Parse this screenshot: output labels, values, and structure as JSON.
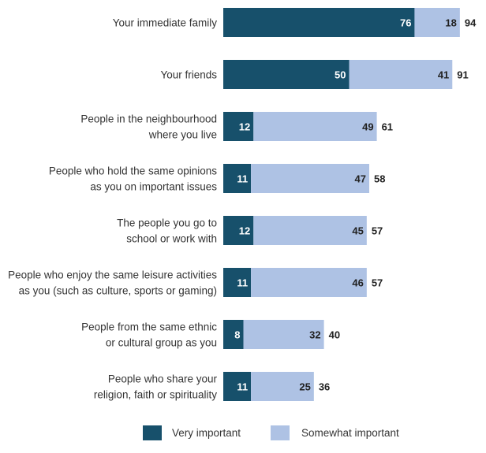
{
  "chart_data": {
    "type": "bar",
    "orientation": "horizontal",
    "stacked": true,
    "categories": [
      [
        "Your immediate family"
      ],
      [
        "Your friends"
      ],
      [
        "People in the neighbourhood",
        "where you live"
      ],
      [
        "People who hold the same opinions",
        "as you on important issues"
      ],
      [
        "The people you go to",
        "school or work with"
      ],
      [
        "People who enjoy the same leisure activities",
        "as you (such as culture, sports or gaming)"
      ],
      [
        "People from the same ethnic",
        "or cultural group as you"
      ],
      [
        "People who share your",
        "religion, faith or spirituality"
      ]
    ],
    "series": [
      {
        "name": "Very important",
        "values": [
          76,
          50,
          12,
          11,
          12,
          11,
          8,
          11
        ],
        "color": "#17506b",
        "label_color": "#ffffff"
      },
      {
        "name": "Somewhat important",
        "values": [
          18,
          41,
          49,
          47,
          45,
          46,
          32,
          25
        ],
        "color": "#aec2e4",
        "label_color": "#222222"
      }
    ],
    "totals": [
      94,
      91,
      61,
      58,
      57,
      57,
      40,
      36
    ],
    "xlim": [
      0,
      100
    ],
    "legend_position": "bottom",
    "grid": false
  }
}
